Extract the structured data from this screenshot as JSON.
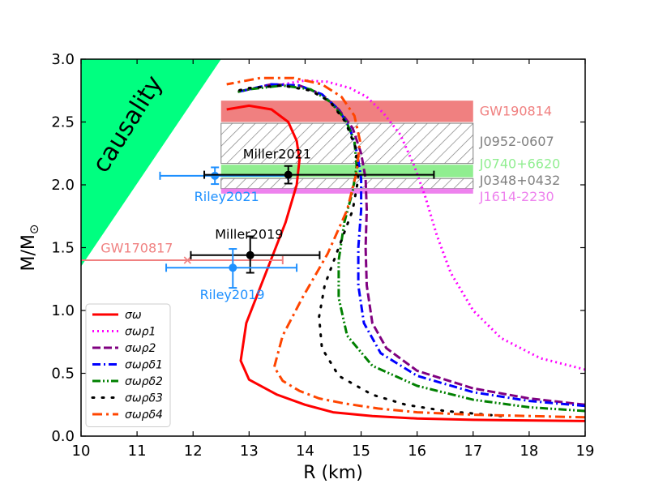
{
  "chart_data": {
    "type": "line",
    "title": "",
    "xlabel": "R (km)",
    "ylabel_main": "M/M",
    "ylabel_sub": "⊙",
    "xlim": [
      10,
      19
    ],
    "ylim": [
      0.0,
      3.0
    ],
    "xticks": [
      "10",
      "11",
      "12",
      "13",
      "14",
      "15",
      "16",
      "17",
      "18",
      "19"
    ],
    "yticks": [
      "0.0",
      "0.5",
      "1.0",
      "1.5",
      "2.0",
      "2.5",
      "3.0"
    ],
    "causality": {
      "label": "causality",
      "color": "#00ff80",
      "polygon": [
        [
          10,
          1.35
        ],
        [
          10,
          3.0
        ],
        [
          12.5,
          3.0
        ]
      ]
    },
    "bands": [
      {
        "name": "GW190814",
        "ymin": 2.5,
        "ymax": 2.67,
        "xmin": 12.5,
        "xmax": 17,
        "fill": "#f08080",
        "hatch": false,
        "text_color": "#f08080",
        "label_y": 2.59
      },
      {
        "name": "J0952-0607",
        "ymin": 2.17,
        "ymax": 2.49,
        "xmin": 12.5,
        "xmax": 17,
        "fill": "none",
        "hatch": true,
        "text_color": "#808080",
        "label_y": 2.35
      },
      {
        "name": "J0740+6620",
        "ymin": 2.06,
        "ymax": 2.16,
        "xmin": 12.5,
        "xmax": 17,
        "fill": "#90ee90",
        "hatch": false,
        "text_color": "#90ee90",
        "label_y": 2.17
      },
      {
        "name": "J0348+0432",
        "ymin": 1.97,
        "ymax": 2.05,
        "xmin": 12.5,
        "xmax": 17,
        "fill": "none",
        "hatch": true,
        "text_color": "#808080",
        "label_y": 2.04
      },
      {
        "name": "J1614-2230",
        "ymin": 1.93,
        "ymax": 1.97,
        "xmin": 12.5,
        "xmax": 17,
        "fill": "#ee82ee",
        "hatch": false,
        "text_color": "#ee82ee",
        "label_y": 1.91
      }
    ],
    "errorbars": [
      {
        "name": "Riley2021",
        "x": 12.39,
        "y": 2.072,
        "xerr": [
          0.98,
          1.3
        ],
        "yerr": [
          0.066,
          0.067
        ],
        "color": "#1e90ff",
        "label_x": 12.6,
        "label_y": 1.87
      },
      {
        "name": "Miller2021",
        "x": 13.7,
        "y": 2.08,
        "xerr": [
          1.5,
          2.6
        ],
        "yerr": [
          0.07,
          0.07
        ],
        "color": "#000000",
        "label_x": 13.5,
        "label_y": 2.21
      },
      {
        "name": "Miller2019",
        "x": 13.02,
        "y": 1.44,
        "xerr": [
          1.06,
          1.24
        ],
        "yerr": [
          0.14,
          0.15
        ],
        "color": "#000000",
        "label_x": 13.0,
        "label_y": 1.57
      },
      {
        "name": "Riley2019",
        "x": 12.71,
        "y": 1.34,
        "xerr": [
          1.19,
          1.14
        ],
        "yerr": [
          0.16,
          0.15
        ],
        "color": "#1e90ff",
        "label_x": 12.7,
        "label_y": 1.09
      }
    ],
    "gw170817": {
      "name": "GW170817",
      "y": 1.4,
      "xmin": 10.0,
      "xmax": 13.6,
      "marker_x": 11.9,
      "color": "#f08080",
      "label_x": 10.35,
      "label_y": 1.46
    },
    "series": [
      {
        "name": "σω",
        "color": "#ff0000",
        "dash": "solid",
        "x": [
          19,
          17,
          16,
          15.2,
          14.5,
          14.0,
          13.5,
          13.0,
          12.85,
          12.95,
          13.3,
          13.65,
          13.85,
          13.9,
          13.85,
          13.7,
          13.4,
          13.0,
          12.6
        ],
        "y": [
          0.12,
          0.13,
          0.14,
          0.16,
          0.19,
          0.25,
          0.33,
          0.45,
          0.6,
          0.9,
          1.3,
          1.7,
          2.0,
          2.2,
          2.35,
          2.5,
          2.6,
          2.63,
          2.6
        ]
      },
      {
        "name": "σωρ1",
        "color": "#ff00ff",
        "dash": "dotted",
        "x": [
          19,
          18.2,
          17.5,
          17.0,
          16.6,
          16.35,
          16.15,
          15.95,
          15.7,
          15.4,
          15.1,
          14.8,
          14.4,
          14.0,
          13.6
        ],
        "y": [
          0.53,
          0.62,
          0.78,
          1.0,
          1.3,
          1.6,
          1.9,
          2.15,
          2.4,
          2.57,
          2.7,
          2.77,
          2.82,
          2.83,
          2.8
        ]
      },
      {
        "name": "σωρ2",
        "color": "#800080",
        "dash": "dashed",
        "x": [
          19,
          18,
          17,
          16,
          15.45,
          15.2,
          15.1,
          15.08,
          15.1,
          15.08,
          15.0,
          14.85,
          14.6,
          14.3,
          13.9,
          13.4,
          12.8
        ],
        "y": [
          0.25,
          0.3,
          0.38,
          0.52,
          0.7,
          0.9,
          1.2,
          1.5,
          1.8,
          2.05,
          2.25,
          2.45,
          2.6,
          2.72,
          2.79,
          2.8,
          2.74
        ]
      },
      {
        "name": "σωρδ1",
        "color": "#0000ff",
        "dash": "dashdot",
        "x": [
          19,
          18,
          17,
          16,
          15.35,
          15.05,
          14.95,
          14.95,
          15.0,
          15.0,
          14.93,
          14.8,
          14.6,
          14.3,
          13.9,
          13.4,
          12.8
        ],
        "y": [
          0.24,
          0.28,
          0.35,
          0.48,
          0.66,
          0.9,
          1.2,
          1.5,
          1.8,
          2.05,
          2.25,
          2.45,
          2.6,
          2.72,
          2.79,
          2.8,
          2.74
        ]
      },
      {
        "name": "σωρδ2",
        "color": "#008000",
        "dash": "dashdotdot",
        "x": [
          19,
          18,
          17,
          16,
          15.2,
          14.75,
          14.6,
          14.6,
          14.7,
          14.85,
          14.92,
          14.88,
          14.72,
          14.45,
          14.1,
          13.6,
          13.0,
          12.8
        ],
        "y": [
          0.2,
          0.23,
          0.29,
          0.4,
          0.56,
          0.8,
          1.1,
          1.4,
          1.7,
          1.95,
          2.15,
          2.35,
          2.52,
          2.66,
          2.76,
          2.79,
          2.76,
          2.74
        ]
      },
      {
        "name": "σωρδ3",
        "color": "#000000",
        "dash": "dotted_sparse",
        "x": [
          17.5,
          16.5,
          15.8,
          15.2,
          14.6,
          14.3,
          14.25,
          14.35,
          14.6,
          14.85,
          14.95,
          14.9,
          14.72,
          14.45,
          14.1,
          13.6,
          13.0,
          12.8
        ],
        "y": [
          0.16,
          0.2,
          0.25,
          0.33,
          0.48,
          0.7,
          0.95,
          1.2,
          1.5,
          1.8,
          2.05,
          2.3,
          2.5,
          2.66,
          2.75,
          2.79,
          2.77,
          2.75
        ]
      },
      {
        "name": "σωρδ4",
        "color": "#ff4500",
        "dash": "longdashdot",
        "x": [
          19,
          17,
          16,
          15.3,
          14.7,
          14.25,
          13.9,
          13.6,
          13.45,
          13.6,
          13.95,
          14.4,
          14.75,
          14.92,
          14.98,
          14.88,
          14.65,
          14.3,
          13.8,
          13.2,
          12.6
        ],
        "y": [
          0.15,
          0.17,
          0.19,
          0.22,
          0.26,
          0.3,
          0.36,
          0.44,
          0.55,
          0.8,
          1.1,
          1.45,
          1.8,
          2.1,
          2.35,
          2.55,
          2.7,
          2.8,
          2.85,
          2.85,
          2.8
        ]
      }
    ],
    "legend_position": "lower-left"
  }
}
